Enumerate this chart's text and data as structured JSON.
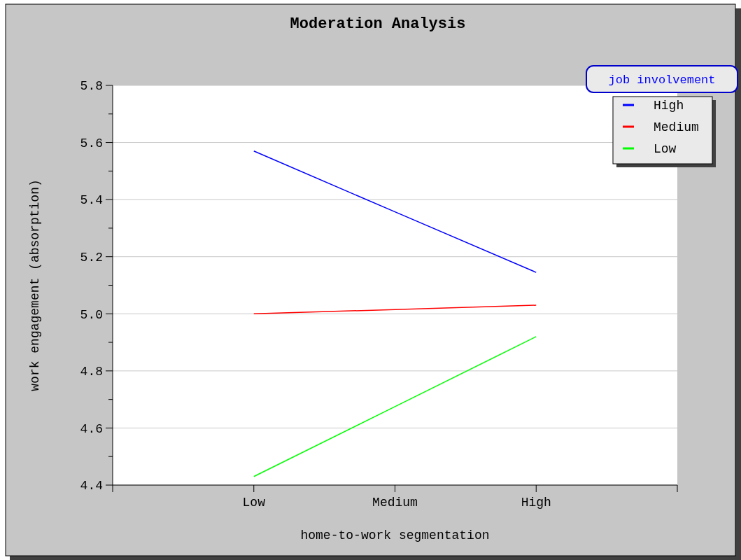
{
  "chart_data": {
    "type": "line",
    "title": "Moderation Analysis",
    "xlabel": "home-to-work segmentation",
    "ylabel": "work engagement (absorption)",
    "legend_title": "job involvement",
    "categories": [
      "Low",
      "Medium",
      "High"
    ],
    "ylim": [
      4.4,
      5.8
    ],
    "yticks": [
      4.4,
      {
        "value": 4.5,
        "label": null
      },
      4.6,
      {
        "value": 4.7,
        "label": null
      },
      4.8,
      {
        "value": 4.9,
        "label": null
      },
      {
        "value": 5,
        "label": "5.0"
      },
      {
        "value": 5.1,
        "label": null
      },
      5.2,
      {
        "value": 5.3,
        "label": null
      },
      5.4,
      {
        "value": 5.5,
        "label": null
      },
      5.6,
      {
        "value": 5.7,
        "label": null
      },
      5.8
    ],
    "grid": "y",
    "legend": "top right",
    "marker": "none",
    "line_style": "solid",
    "series": [
      {
        "name": "High",
        "color": "#0000ff",
        "values": [
          5.57,
          5.357,
          5.145
        ]
      },
      {
        "name": "Medium",
        "color": "#ff0000",
        "values": [
          5.0,
          5.015,
          5.03
        ]
      },
      {
        "name": "Low",
        "color": "#00ff00",
        "values": [
          4.43,
          4.675,
          4.92
        ]
      }
    ]
  }
}
